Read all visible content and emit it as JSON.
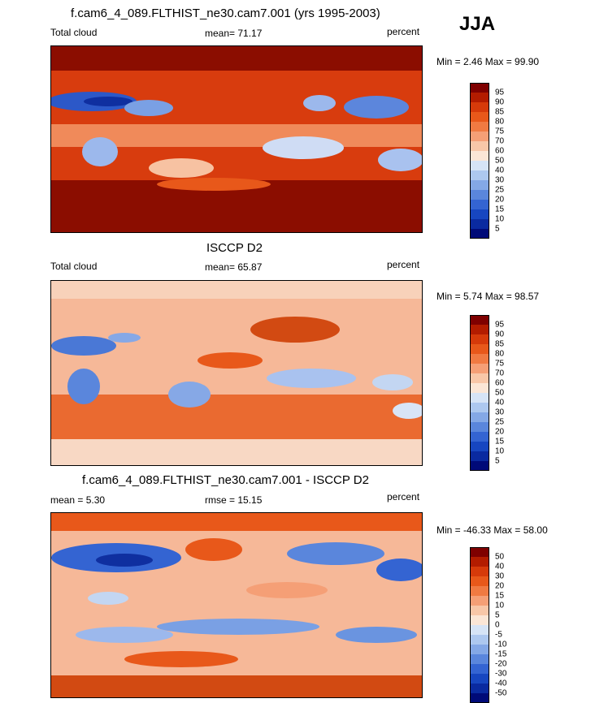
{
  "season": "JJA",
  "panels": [
    {
      "title": "f.cam6_4_089.FLTHIST_ne30.cam7.001 (yrs 1995-2003)",
      "left_label": "Total cloud",
      "center_label": "mean=  71.17",
      "right_label": "percent",
      "minmax": "Min =   2.46 Max =  99.90",
      "colorbar": {
        "levels": [
          "95",
          "90",
          "85",
          "80",
          "75",
          "70",
          "60",
          "50",
          "40",
          "30",
          "25",
          "20",
          "15",
          "10",
          "5"
        ],
        "colors": [
          "#7f0000",
          "#b31c00",
          "#d63a0a",
          "#e8581a",
          "#f07a42",
          "#f59f76",
          "#f8c7a8",
          "#fbe6d6",
          "#d6e4f6",
          "#adc8ef",
          "#84a8e6",
          "#5a86dc",
          "#3464d2",
          "#1746c0",
          "#0a2aa0",
          "#000a78"
        ]
      }
    },
    {
      "title": "ISCCP D2",
      "left_label": "Total cloud",
      "center_label": "mean=  65.87",
      "right_label": "percent",
      "minmax": "Min =   5.74 Max =  98.57",
      "colorbar": {
        "levels": [
          "95",
          "90",
          "85",
          "80",
          "75",
          "70",
          "60",
          "50",
          "40",
          "30",
          "25",
          "20",
          "15",
          "10",
          "5"
        ],
        "colors": [
          "#7f0000",
          "#b31c00",
          "#d63a0a",
          "#e8581a",
          "#f07a42",
          "#f59f76",
          "#f8c7a8",
          "#fbe6d6",
          "#d6e4f6",
          "#adc8ef",
          "#84a8e6",
          "#5a86dc",
          "#3464d2",
          "#1746c0",
          "#0a2aa0",
          "#000a78"
        ]
      }
    },
    {
      "title": "f.cam6_4_089.FLTHIST_ne30.cam7.001 - ISCCP D2",
      "left_label": "mean =   5.30",
      "center_label": "rmse =  15.15",
      "right_label": "percent",
      "minmax": "Min = -46.33 Max =  58.00",
      "colorbar": {
        "levels": [
          "50",
          "40",
          "30",
          "20",
          "15",
          "10",
          "5",
          "0",
          "-5",
          "-10",
          "-15",
          "-20",
          "-30",
          "-40",
          "-50"
        ],
        "colors": [
          "#7f0000",
          "#b31c00",
          "#d63a0a",
          "#e8581a",
          "#f07a42",
          "#f59f76",
          "#f8c7a8",
          "#fbe6d6",
          "#d6e4f6",
          "#adc8ef",
          "#84a8e6",
          "#5a86dc",
          "#3464d2",
          "#1746c0",
          "#0a2aa0",
          "#000a78"
        ]
      }
    }
  ]
}
